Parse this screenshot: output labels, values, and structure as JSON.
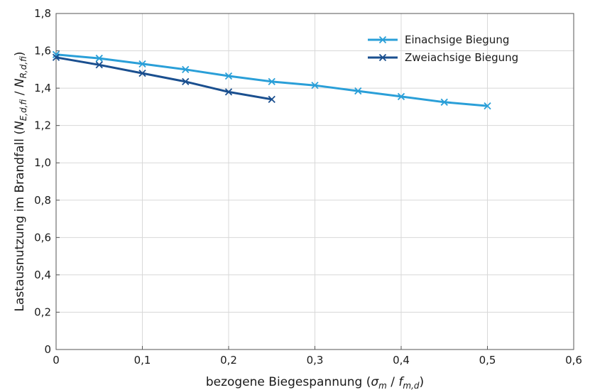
{
  "chart_data": {
    "type": "line",
    "xlabel": {
      "prefix": "bezogene Biegespannung (",
      "num": "σ",
      "num_sub": "m",
      "sep": " / ",
      "den": "f",
      "den_sub": "m,d",
      "suffix": ")"
    },
    "ylabel": {
      "prefix": "Lastausnutzung im Brandfall (",
      "num": "N",
      "num_sub": "E,d,fi",
      "sep": " / ",
      "den": "N",
      "den_sub": "R,d,fi",
      "suffix": ")"
    },
    "xlim": [
      0,
      0.6
    ],
    "ylim": [
      0,
      1.8
    ],
    "grid": true,
    "legend_position": "top-right",
    "x_ticks": [
      {
        "value": 0,
        "label": "0"
      },
      {
        "value": 0.1,
        "label": "0,1"
      },
      {
        "value": 0.2,
        "label": "0,2"
      },
      {
        "value": 0.3,
        "label": "0,3"
      },
      {
        "value": 0.4,
        "label": "0,4"
      },
      {
        "value": 0.5,
        "label": "0,5"
      },
      {
        "value": 0.6,
        "label": "0,6"
      }
    ],
    "y_ticks": [
      {
        "value": 0,
        "label": "0"
      },
      {
        "value": 0.2,
        "label": "0,2"
      },
      {
        "value": 0.4,
        "label": "0,4"
      },
      {
        "value": 0.6,
        "label": "0,6"
      },
      {
        "value": 0.8,
        "label": "0,8"
      },
      {
        "value": 1.0,
        "label": "1,0"
      },
      {
        "value": 1.2,
        "label": "1,2"
      },
      {
        "value": 1.4,
        "label": "1,4"
      },
      {
        "value": 1.6,
        "label": "1,6"
      },
      {
        "value": 1.8,
        "label": "1,8"
      }
    ],
    "series": [
      {
        "name": "Einachsige Biegung",
        "color": "#2a9fd8",
        "marker": "x",
        "x": [
          0,
          0.05,
          0.1,
          0.15,
          0.2,
          0.25,
          0.3,
          0.35,
          0.4,
          0.45,
          0.5
        ],
        "y": [
          1.58,
          1.56,
          1.53,
          1.5,
          1.465,
          1.435,
          1.415,
          1.385,
          1.355,
          1.325,
          1.305
        ]
      },
      {
        "name": "Zweiachsige Biegung",
        "color": "#1a4f8f",
        "marker": "x",
        "x": [
          0,
          0.05,
          0.1,
          0.15,
          0.2,
          0.25
        ],
        "y": [
          1.565,
          1.525,
          1.48,
          1.435,
          1.38,
          1.34
        ]
      }
    ]
  }
}
